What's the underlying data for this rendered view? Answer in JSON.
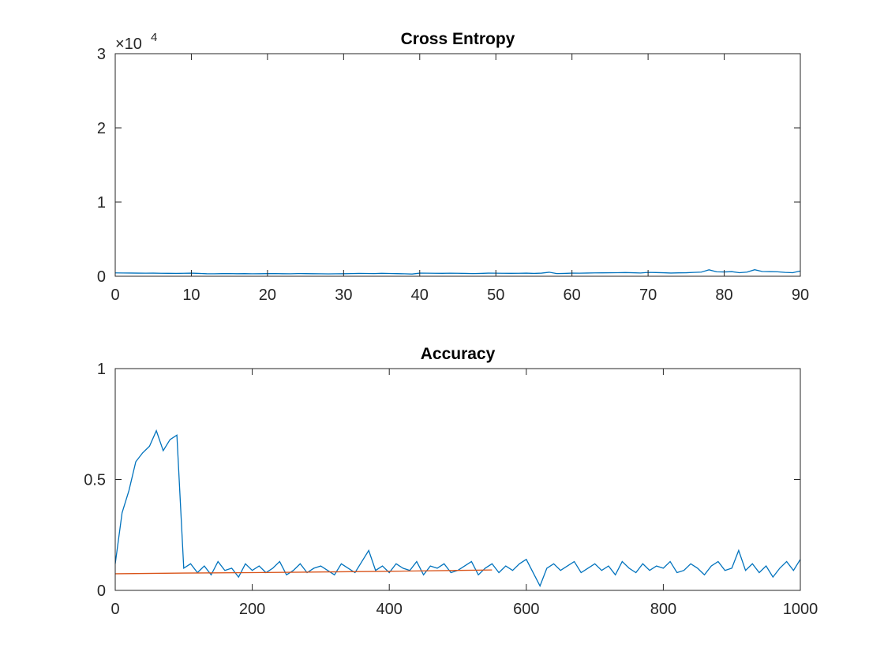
{
  "chart_data": [
    {
      "type": "line",
      "title": "Cross Entropy",
      "x": [
        0,
        1,
        2,
        3,
        4,
        5,
        6,
        7,
        8,
        9,
        10,
        11,
        12,
        13,
        14,
        15,
        16,
        17,
        18,
        19,
        20,
        21,
        22,
        23,
        24,
        25,
        26,
        27,
        28,
        29,
        30,
        31,
        32,
        33,
        34,
        35,
        36,
        37,
        38,
        39,
        40,
        41,
        42,
        43,
        44,
        45,
        46,
        47,
        48,
        49,
        50,
        51,
        52,
        53,
        54,
        55,
        56,
        57,
        58,
        59,
        60,
        61,
        62,
        63,
        64,
        65,
        66,
        67,
        68,
        69,
        70,
        71,
        72,
        73,
        74,
        75,
        76,
        77,
        78,
        79,
        80,
        81,
        82,
        83,
        84,
        85,
        86,
        87,
        88,
        89,
        90
      ],
      "series": [
        {
          "color": "#0072bd",
          "values": [
            450,
            440,
            430,
            420,
            410,
            420,
            400,
            390,
            380,
            400,
            420,
            380,
            340,
            330,
            350,
            360,
            340,
            350,
            330,
            340,
            350,
            360,
            340,
            330,
            360,
            350,
            340,
            330,
            320,
            330,
            340,
            360,
            380,
            370,
            360,
            390,
            370,
            350,
            330,
            300,
            420,
            410,
            400,
            390,
            410,
            400,
            380,
            360,
            380,
            420,
            410,
            400,
            390,
            400,
            420,
            380,
            420,
            540,
            360,
            380,
            420,
            410,
            430,
            450,
            460,
            470,
            480,
            500,
            470,
            440,
            520,
            500,
            470,
            430,
            460,
            470,
            520,
            560,
            870,
            600,
            580,
            620,
            480,
            560,
            880,
            640,
            620,
            600,
            520,
            480,
            700
          ]
        }
      ],
      "xlim": [
        0,
        90
      ],
      "xticks": [
        0,
        10,
        20,
        30,
        40,
        50,
        60,
        70,
        80,
        90
      ],
      "ylim": [
        0,
        30000
      ],
      "yticks": [
        0,
        {
          "value": 10000,
          "label": "1"
        },
        {
          "value": 20000,
          "label": "2"
        },
        {
          "value": 30000,
          "label": "3"
        }
      ],
      "y_exponent_base": "×10",
      "y_exponent": 4
    },
    {
      "type": "line",
      "title": "Accuracy",
      "x": [
        0,
        10,
        20,
        30,
        40,
        50,
        60,
        70,
        80,
        90,
        100,
        110,
        120,
        130,
        140,
        150,
        160,
        170,
        180,
        190,
        200,
        210,
        220,
        230,
        240,
        250,
        260,
        270,
        280,
        290,
        300,
        310,
        320,
        330,
        340,
        350,
        360,
        370,
        380,
        390,
        400,
        410,
        420,
        430,
        440,
        450,
        460,
        470,
        480,
        490,
        500,
        510,
        520,
        530,
        540,
        550,
        560,
        570,
        580,
        590,
        600,
        610,
        620,
        630,
        640,
        650,
        660,
        670,
        680,
        690,
        700,
        710,
        720,
        730,
        740,
        750,
        760,
        770,
        780,
        790,
        800,
        810,
        820,
        830,
        840,
        850,
        860,
        870,
        880,
        890,
        900,
        910,
        920,
        930,
        940,
        950,
        960,
        970,
        980,
        990,
        1000
      ],
      "series": [
        {
          "color": "#0072bd",
          "values": [
            0.12,
            0.35,
            0.45,
            0.58,
            0.62,
            0.65,
            0.72,
            0.63,
            0.68,
            0.7,
            0.1,
            0.12,
            0.08,
            0.11,
            0.07,
            0.13,
            0.09,
            0.1,
            0.06,
            0.12,
            0.09,
            0.11,
            0.08,
            0.1,
            0.13,
            0.07,
            0.09,
            0.12,
            0.08,
            0.1,
            0.11,
            0.09,
            0.07,
            0.12,
            0.1,
            0.08,
            0.13,
            0.18,
            0.09,
            0.11,
            0.08,
            0.12,
            0.1,
            0.09,
            0.13,
            0.07,
            0.11,
            0.1,
            0.12,
            0.08,
            0.09,
            0.11,
            0.13,
            0.07,
            0.1,
            0.12,
            0.08,
            0.11,
            0.09,
            0.12,
            0.14,
            0.08,
            0.02,
            0.1,
            0.12,
            0.09,
            0.11,
            0.13,
            0.08,
            0.1,
            0.12,
            0.09,
            0.11,
            0.07,
            0.13,
            0.1,
            0.08,
            0.12,
            0.09,
            0.11,
            0.1,
            0.13,
            0.08,
            0.09,
            0.12,
            0.1,
            0.07,
            0.11,
            0.13,
            0.09,
            0.1,
            0.18,
            0.09,
            0.12,
            0.08,
            0.11,
            0.06,
            0.1,
            0.13,
            0.09,
            0.14
          ]
        },
        {
          "color": "#d95319",
          "x": [
            0,
            100,
            200,
            300,
            400,
            500,
            550
          ],
          "values": [
            0.075,
            0.078,
            0.08,
            0.083,
            0.086,
            0.09,
            0.092
          ]
        }
      ],
      "xlim": [
        0,
        1000
      ],
      "xticks": [
        0,
        200,
        400,
        600,
        800,
        1000
      ],
      "ylim": [
        0,
        1
      ],
      "yticks": [
        0,
        0.5,
        1
      ]
    }
  ]
}
